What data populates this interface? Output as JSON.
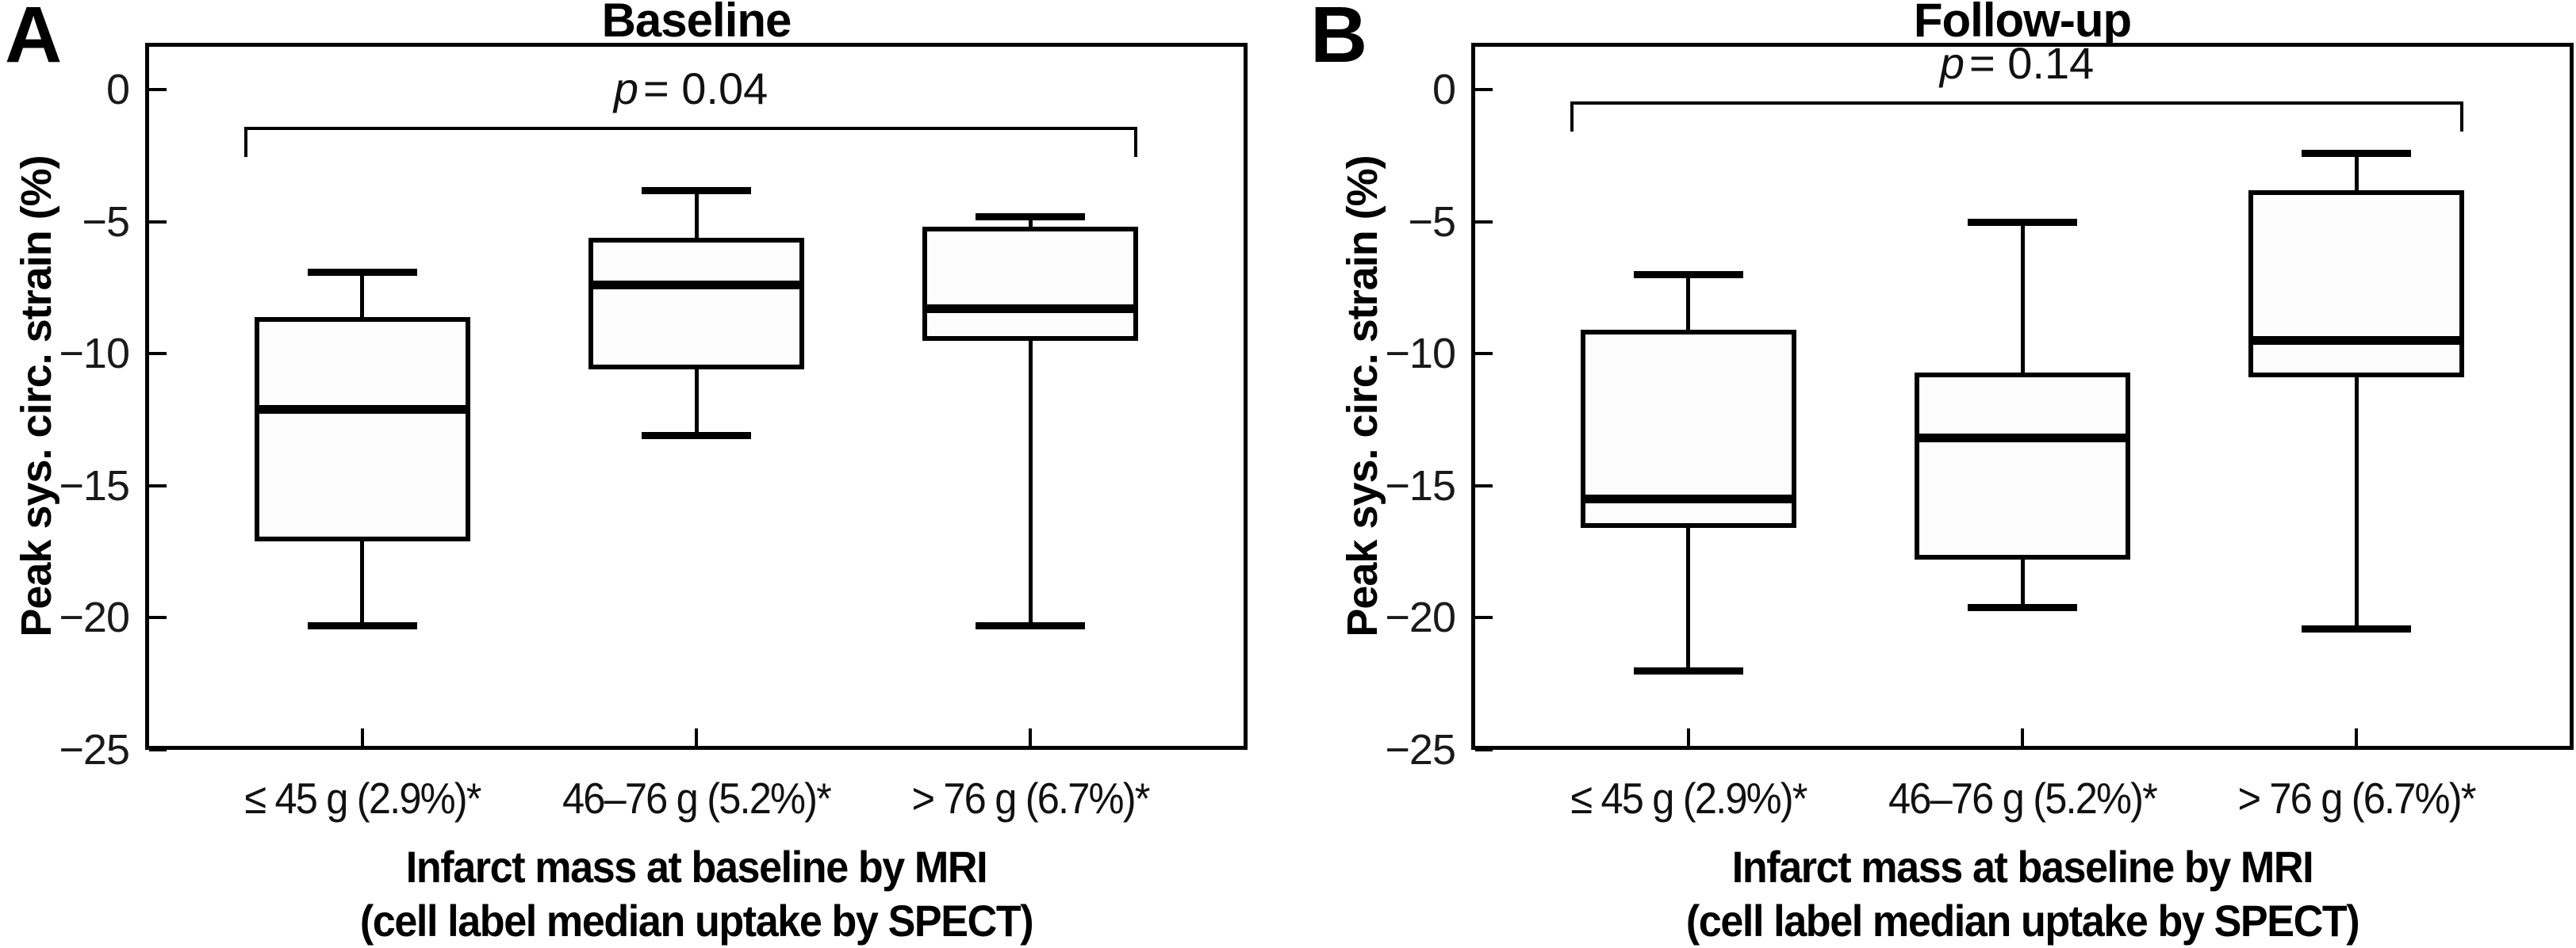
{
  "figure": {
    "ylabel": "Peak sys. circ. strain (%)",
    "xlabel_line1": "Infarct mass at baseline by MRI",
    "xlabel_line2": "(cell label median uptake by SPECT)",
    "ytick_labels": [
      "0",
      "−5",
      "−10",
      "−15",
      "−20",
      "−25"
    ]
  },
  "chart_data": [
    {
      "type": "box",
      "panel_letter": "A",
      "title": "Baseline",
      "p_annotation": {
        "var": "p",
        "rest": "= 0.04"
      },
      "ylabel": "Peak sys. circ. strain (%)",
      "xlabel_line1": "Infarct mass at baseline by MRI",
      "xlabel_line2": "(cell label median uptake by SPECT)",
      "ylim": [
        -25,
        0
      ],
      "yticks": [
        0,
        -5,
        -10,
        -15,
        -20,
        -25
      ],
      "categories": [
        "≤ 45 g (2.9%)*",
        "46–76 g (5.2%)*",
        "> 76 g (6.7%)*"
      ],
      "series": [
        {
          "category": "≤ 45 g (2.9%)*",
          "min": -20.3,
          "q1": -17.1,
          "median": -12.1,
          "q3": -8.6,
          "max": -6.9
        },
        {
          "category": "46–76 g (5.2%)*",
          "min": -13.1,
          "q1": -10.6,
          "median": -7.4,
          "q3": -5.6,
          "max": -3.8
        },
        {
          "category": "> 76 g (6.7%)*",
          "min": -20.3,
          "q1": -9.5,
          "median": -8.3,
          "q3": -5.2,
          "max": -4.8
        }
      ]
    },
    {
      "type": "box",
      "panel_letter": "B",
      "title": "Follow-up",
      "p_annotation": {
        "var": "p",
        "rest": "= 0.14"
      },
      "ylabel": "Peak sys. circ. strain (%)",
      "xlabel_line1": "Infarct mass at baseline by MRI",
      "xlabel_line2": "(cell label median uptake by SPECT)",
      "ylim": [
        -25,
        0
      ],
      "yticks": [
        0,
        -5,
        -10,
        -15,
        -20,
        -25
      ],
      "categories": [
        "≤ 45 g (2.9%)*",
        "46–76 g (5.2%)*",
        "> 76 g (6.7%)*"
      ],
      "series": [
        {
          "category": "≤ 45 g (2.9%)*",
          "min": -22.0,
          "q1": -16.6,
          "median": -15.5,
          "q3": -9.1,
          "max": -7.0
        },
        {
          "category": "46–76 g (5.2%)*",
          "min": -19.6,
          "q1": -17.8,
          "median": -13.2,
          "q3": -10.7,
          "max": -5.0
        },
        {
          "category": "> 76 g (6.7%)*",
          "min": -20.4,
          "q1": -10.9,
          "median": -9.5,
          "q3": -3.8,
          "max": -2.4
        }
      ]
    }
  ]
}
